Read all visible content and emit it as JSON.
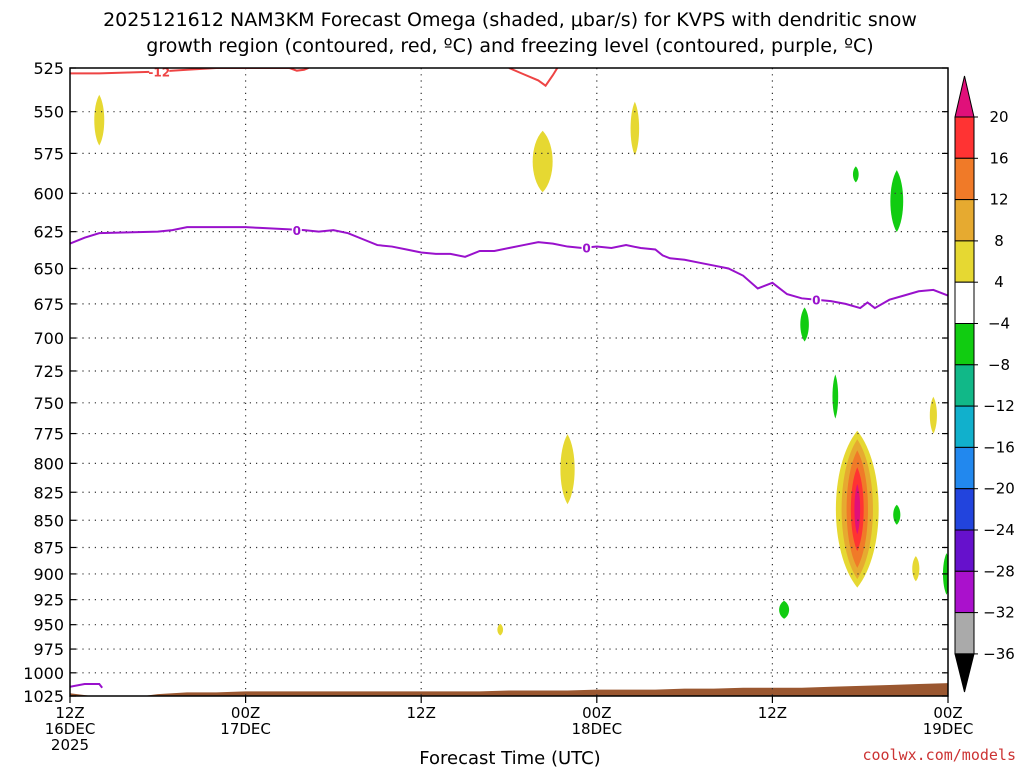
{
  "title": {
    "line1": "2025121612 NAM3KM Forecast Omega (shaded, μbar/s) for KVPS with dendritic snow",
    "line2": "growth region (contoured, red, ºC) and freezing level (contoured, purple, ºC)"
  },
  "xlabel": "Forecast Time (UTC)",
  "credit": "coolwx.com/models",
  "chart_data": {
    "type": "heatmap",
    "x_ticks": [
      {
        "hour": 0,
        "l1": "12Z",
        "l2": "16DEC",
        "l3": "2025"
      },
      {
        "hour": 12,
        "l1": "00Z",
        "l2": "17DEC",
        "l3": ""
      },
      {
        "hour": 24,
        "l1": "12Z",
        "l2": "",
        "l3": ""
      },
      {
        "hour": 36,
        "l1": "00Z",
        "l2": "18DEC",
        "l3": ""
      },
      {
        "hour": 48,
        "l1": "12Z",
        "l2": "",
        "l3": ""
      },
      {
        "hour": 60,
        "l1": "00Z",
        "l2": "19DEC",
        "l3": ""
      }
    ],
    "x_range_hours": [
      0,
      60
    ],
    "y_ticks": [
      525,
      550,
      575,
      600,
      625,
      650,
      675,
      700,
      725,
      750,
      775,
      800,
      825,
      850,
      875,
      900,
      925,
      950,
      975,
      1000,
      1025
    ],
    "y_range_hPa": [
      525,
      1025
    ],
    "y_scale": "log-pressure",
    "grid": true,
    "colorbar": {
      "ticks": [
        "20",
        "16",
        "12",
        "8",
        "4",
        "−4",
        "−8",
        "−12",
        "−16",
        "−20",
        "−24",
        "−28",
        "−32",
        "−36"
      ],
      "bands": [
        {
          "from": 16,
          "to": 20,
          "color": "#ff3333"
        },
        {
          "from": 12,
          "to": 16,
          "color": "#f07a28"
        },
        {
          "from": 8,
          "to": 12,
          "color": "#e6aa30"
        },
        {
          "from": 4,
          "to": 8,
          "color": "#e6d832"
        },
        {
          "from": -4,
          "to": 4,
          "color": "#ffffff"
        },
        {
          "from": -8,
          "to": -4,
          "color": "#11cc11"
        },
        {
          "from": -12,
          "to": -8,
          "color": "#11b888"
        },
        {
          "from": -16,
          "to": -12,
          "color": "#11b0cc"
        },
        {
          "from": -20,
          "to": -16,
          "color": "#2288ee"
        },
        {
          "from": -24,
          "to": -20,
          "color": "#2244dd"
        },
        {
          "from": -28,
          "to": -24,
          "color": "#6611cc"
        },
        {
          "from": -32,
          "to": -28,
          "color": "#aa11cc"
        },
        {
          "from": -36,
          "to": -32,
          "color": "#aaaaaa"
        }
      ],
      "over_color": "#e0107a",
      "under_color": "#000000"
    },
    "omega_features": [
      {
        "t": 2.0,
        "p": 555,
        "dt": 0.35,
        "dp": 30,
        "level": 4,
        "color": "#e6d832"
      },
      {
        "t": 32.3,
        "p": 580,
        "dt": 0.7,
        "dp": 38,
        "level": 4,
        "color": "#e6d832"
      },
      {
        "t": 38.6,
        "p": 560,
        "dt": 0.3,
        "dp": 32,
        "level": 4,
        "color": "#e6d832"
      },
      {
        "t": 34.0,
        "p": 805,
        "dt": 0.5,
        "dp": 60,
        "level": 4,
        "color": "#e6d832"
      },
      {
        "t": 29.4,
        "p": 955,
        "dt": 0.2,
        "dp": 12,
        "level": 4,
        "color": "#e6d832"
      },
      {
        "t": 59.0,
        "p": 760,
        "dt": 0.25,
        "dp": 30,
        "level": 4,
        "color": "#e6d832"
      },
      {
        "t": 57.8,
        "p": 895,
        "dt": 0.25,
        "dp": 24,
        "level": 4,
        "color": "#e6d832"
      },
      {
        "t": 53.7,
        "p": 588,
        "dt": 0.2,
        "dp": 10,
        "level": -4,
        "color": "#11cc11"
      },
      {
        "t": 56.5,
        "p": 605,
        "dt": 0.45,
        "dp": 40,
        "level": -4,
        "color": "#11cc11"
      },
      {
        "t": 50.2,
        "p": 690,
        "dt": 0.3,
        "dp": 25,
        "level": -4,
        "color": "#11cc11"
      },
      {
        "t": 52.3,
        "p": 745,
        "dt": 0.2,
        "dp": 35,
        "level": -4,
        "color": "#11cc11"
      },
      {
        "t": 48.8,
        "p": 935,
        "dt": 0.35,
        "dp": 18,
        "level": -4,
        "color": "#11cc11"
      },
      {
        "t": 56.5,
        "p": 845,
        "dt": 0.25,
        "dp": 18,
        "level": -4,
        "color": "#11cc11"
      },
      {
        "t": 59.9,
        "p": 900,
        "dt": 0.25,
        "dp": 40,
        "level": -4,
        "color": "#11cc11"
      }
    ],
    "omega_core": {
      "t": 53.8,
      "p": 840,
      "levels": [
        {
          "level": 4,
          "color": "#e6d832",
          "dt": 1.5,
          "dp": 140
        },
        {
          "level": 8,
          "color": "#e6aa30",
          "dt": 1.1,
          "dp": 125
        },
        {
          "level": 12,
          "color": "#f07a28",
          "dt": 0.75,
          "dp": 105
        },
        {
          "level": 16,
          "color": "#ff3333",
          "dt": 0.45,
          "dp": 75
        },
        {
          "level": 20,
          "color": "#e0107a",
          "dt": 0.2,
          "dp": 45
        }
      ]
    },
    "freezing_level_0C": {
      "label": "0",
      "color": "#9911cc",
      "points": [
        [
          0,
          633
        ],
        [
          1,
          629
        ],
        [
          2,
          626
        ],
        [
          4,
          625.5
        ],
        [
          6,
          625
        ],
        [
          7,
          624
        ],
        [
          8,
          622
        ],
        [
          10,
          622
        ],
        [
          12,
          622
        ],
        [
          13,
          622.5
        ],
        [
          14,
          623
        ],
        [
          16,
          624
        ],
        [
          17,
          625
        ],
        [
          18,
          624
        ],
        [
          19,
          626
        ],
        [
          20,
          630
        ],
        [
          21,
          634
        ],
        [
          22,
          635
        ],
        [
          23,
          637
        ],
        [
          24,
          639
        ],
        [
          25,
          640
        ],
        [
          26,
          640
        ],
        [
          27,
          642
        ],
        [
          28,
          638
        ],
        [
          29,
          638
        ],
        [
          30,
          636
        ],
        [
          31,
          634
        ],
        [
          32,
          632
        ],
        [
          33,
          633
        ],
        [
          34,
          635
        ],
        [
          35,
          636
        ],
        [
          36,
          635
        ],
        [
          37,
          636
        ],
        [
          38,
          634
        ],
        [
          39,
          636
        ],
        [
          40,
          637
        ],
        [
          40.5,
          641
        ],
        [
          41,
          643
        ],
        [
          42,
          644
        ],
        [
          43,
          646
        ],
        [
          44,
          648
        ],
        [
          45,
          650
        ],
        [
          46,
          655
        ],
        [
          47,
          664
        ],
        [
          48,
          660
        ],
        [
          49,
          668
        ],
        [
          50,
          671
        ],
        [
          51,
          672
        ],
        [
          52,
          673
        ],
        [
          53,
          675
        ],
        [
          54,
          678
        ],
        [
          54.5,
          674
        ],
        [
          55,
          678
        ],
        [
          56,
          672
        ],
        [
          57,
          669
        ],
        [
          58,
          666
        ],
        [
          59,
          665
        ],
        [
          60,
          669
        ]
      ],
      "label_hours": [
        15.5,
        35.3,
        51.0
      ]
    },
    "dgz_minus12C": {
      "label": "-12",
      "color": "#ee4444",
      "segments": [
        [
          [
            0,
            528
          ],
          [
            2,
            528
          ],
          [
            4,
            527.5
          ],
          [
            6,
            527
          ],
          [
            8,
            526
          ],
          [
            10,
            525
          ],
          [
            11,
            525
          ]
        ],
        [
          [
            11,
            525
          ],
          [
            13,
            525
          ],
          [
            15,
            525
          ],
          [
            15.5,
            526.5
          ],
          [
            16,
            526
          ],
          [
            16.3,
            525
          ]
        ],
        [
          [
            30,
            525
          ],
          [
            31,
            528.5
          ],
          [
            32,
            532
          ],
          [
            32.5,
            535
          ],
          [
            33,
            529
          ],
          [
            33.3,
            525
          ]
        ]
      ],
      "label_hours": [
        6.1
      ]
    },
    "terrain": {
      "color": "#9a5730",
      "points": [
        [
          0,
          1022
        ],
        [
          2,
          1026
        ],
        [
          4,
          1026
        ],
        [
          5,
          1025
        ],
        [
          6,
          1023
        ],
        [
          8,
          1021
        ],
        [
          10,
          1021
        ],
        [
          12,
          1020
        ],
        [
          14,
          1020
        ],
        [
          16,
          1020
        ],
        [
          18,
          1020
        ],
        [
          20,
          1020
        ],
        [
          22,
          1020
        ],
        [
          24,
          1020
        ],
        [
          26,
          1020
        ],
        [
          28,
          1020
        ],
        [
          30,
          1019
        ],
        [
          32,
          1019
        ],
        [
          34,
          1019
        ],
        [
          36,
          1018
        ],
        [
          38,
          1018
        ],
        [
          40,
          1018
        ],
        [
          42,
          1017
        ],
        [
          44,
          1017
        ],
        [
          46,
          1016
        ],
        [
          48,
          1016
        ],
        [
          50,
          1016
        ],
        [
          52,
          1015
        ],
        [
          54,
          1014
        ],
        [
          56,
          1013
        ],
        [
          58,
          1012
        ],
        [
          60,
          1011
        ]
      ],
      "sfc_freezing_blip": [
        [
          0,
          1015
        ],
        [
          1,
          1012
        ],
        [
          2,
          1012
        ],
        [
          2.2,
          1016
        ]
      ]
    }
  }
}
